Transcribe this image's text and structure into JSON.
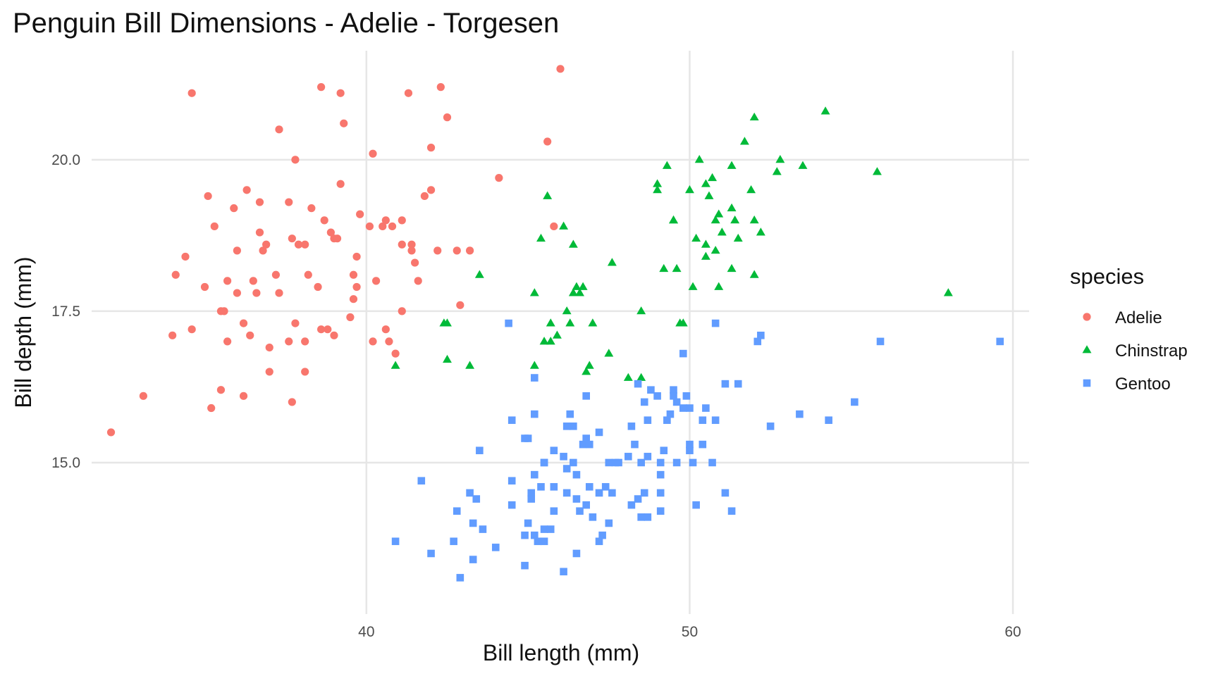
{
  "chart_data": {
    "type": "scatter",
    "title": "Penguin Bill Dimensions - Adelie - Torgesen",
    "xlabel": "Bill length (mm)",
    "ylabel": "Bill depth (mm)",
    "xlim": [
      31.5,
      60.5
    ],
    "ylim": [
      12.5,
      21.8
    ],
    "x_ticks": [
      40,
      50,
      60
    ],
    "x_tick_labels": [
      "40",
      "50",
      "60"
    ],
    "y_ticks": [
      15,
      17.5,
      20
    ],
    "y_tick_labels": [
      "15.0",
      "17.5",
      "20.0"
    ],
    "grid": true,
    "legend": {
      "title": "species",
      "position": "right"
    },
    "series": [
      {
        "name": "Adelie",
        "color": "#F8766D",
        "shape": "circle",
        "points": [
          [
            32.1,
            15.5
          ],
          [
            33.1,
            16.1
          ],
          [
            34.1,
            18.1
          ],
          [
            34.4,
            18.4
          ],
          [
            34.6,
            21.1
          ],
          [
            34.6,
            17.2
          ],
          [
            35.0,
            17.9
          ],
          [
            35.1,
            19.4
          ],
          [
            35.2,
            15.9
          ],
          [
            35.3,
            18.9
          ],
          [
            35.5,
            16.2
          ],
          [
            35.5,
            17.5
          ],
          [
            35.6,
            17.5
          ],
          [
            35.7,
            18.0
          ],
          [
            35.7,
            17.0
          ],
          [
            35.9,
            19.2
          ],
          [
            36.0,
            17.8
          ],
          [
            36.0,
            18.5
          ],
          [
            36.2,
            16.1
          ],
          [
            36.2,
            17.3
          ],
          [
            36.4,
            17.1
          ],
          [
            36.5,
            18.0
          ],
          [
            36.6,
            17.8
          ],
          [
            36.7,
            19.3
          ],
          [
            36.8,
            18.5
          ],
          [
            37.0,
            16.9
          ],
          [
            37.2,
            18.1
          ],
          [
            37.3,
            17.8
          ],
          [
            37.3,
            20.5
          ],
          [
            37.6,
            19.3
          ],
          [
            37.7,
            18.7
          ],
          [
            37.8,
            20.0
          ],
          [
            37.8,
            17.3
          ],
          [
            37.9,
            18.6
          ],
          [
            38.1,
            18.6
          ],
          [
            38.1,
            17.0
          ],
          [
            38.2,
            18.1
          ],
          [
            38.3,
            19.2
          ],
          [
            38.6,
            17.2
          ],
          [
            38.6,
            21.2
          ],
          [
            38.7,
            19.0
          ],
          [
            38.8,
            17.2
          ],
          [
            39.0,
            18.7
          ],
          [
            39.1,
            18.7
          ],
          [
            39.2,
            21.1
          ],
          [
            39.3,
            20.6
          ],
          [
            39.5,
            17.4
          ],
          [
            39.6,
            17.7
          ],
          [
            39.7,
            18.4
          ],
          [
            39.8,
            19.1
          ],
          [
            40.2,
            17.0
          ],
          [
            40.3,
            18.0
          ],
          [
            40.5,
            18.9
          ],
          [
            40.6,
            19.0
          ],
          [
            40.7,
            17.0
          ],
          [
            40.8,
            18.9
          ],
          [
            40.9,
            16.8
          ],
          [
            41.1,
            18.6
          ],
          [
            41.1,
            17.5
          ],
          [
            41.3,
            21.1
          ],
          [
            41.4,
            18.6
          ],
          [
            41.5,
            18.3
          ],
          [
            41.6,
            18.0
          ],
          [
            41.8,
            19.4
          ],
          [
            42.0,
            20.2
          ],
          [
            42.2,
            18.5
          ],
          [
            42.3,
            21.2
          ],
          [
            42.5,
            20.7
          ],
          [
            42.8,
            18.5
          ],
          [
            42.9,
            17.6
          ],
          [
            43.2,
            18.5
          ],
          [
            44.1,
            19.7
          ],
          [
            45.6,
            20.3
          ],
          [
            45.8,
            18.9
          ],
          [
            46.0,
            21.5
          ],
          [
            34.0,
            17.1
          ],
          [
            36.3,
            19.5
          ],
          [
            37.7,
            16.0
          ],
          [
            38.5,
            17.9
          ],
          [
            39.2,
            19.6
          ],
          [
            40.1,
            18.9
          ],
          [
            41.1,
            19.0
          ],
          [
            42.0,
            19.5
          ],
          [
            39.7,
            17.9
          ],
          [
            40.6,
            17.2
          ],
          [
            37.6,
            17.0
          ],
          [
            36.9,
            18.6
          ],
          [
            38.9,
            18.8
          ],
          [
            39.6,
            18.1
          ],
          [
            40.2,
            20.1
          ],
          [
            41.4,
            18.5
          ],
          [
            36.7,
            18.8
          ],
          [
            37.0,
            16.5
          ],
          [
            38.1,
            16.5
          ],
          [
            39.0,
            17.1
          ]
        ]
      },
      {
        "name": "Chinstrap",
        "color": "#00BA38",
        "shape": "triangle",
        "points": [
          [
            40.9,
            16.6
          ],
          [
            42.4,
            17.3
          ],
          [
            42.5,
            16.7
          ],
          [
            42.5,
            17.3
          ],
          [
            43.2,
            16.6
          ],
          [
            43.5,
            18.1
          ],
          [
            45.2,
            17.8
          ],
          [
            45.2,
            16.6
          ],
          [
            45.4,
            18.7
          ],
          [
            45.5,
            17.0
          ],
          [
            45.6,
            19.4
          ],
          [
            45.7,
            17.0
          ],
          [
            45.7,
            17.3
          ],
          [
            45.9,
            17.1
          ],
          [
            46.1,
            18.9
          ],
          [
            46.2,
            17.5
          ],
          [
            46.4,
            18.6
          ],
          [
            46.4,
            17.8
          ],
          [
            46.5,
            17.9
          ],
          [
            46.6,
            17.8
          ],
          [
            46.8,
            16.5
          ],
          [
            46.9,
            16.6
          ],
          [
            47.0,
            17.3
          ],
          [
            47.5,
            16.8
          ],
          [
            47.6,
            18.3
          ],
          [
            48.1,
            16.4
          ],
          [
            48.5,
            17.5
          ],
          [
            49.0,
            19.5
          ],
          [
            49.0,
            19.6
          ],
          [
            49.2,
            18.2
          ],
          [
            49.3,
            19.9
          ],
          [
            49.5,
            19.0
          ],
          [
            49.6,
            18.2
          ],
          [
            49.7,
            17.3
          ],
          [
            50.0,
            19.5
          ],
          [
            50.1,
            17.9
          ],
          [
            50.2,
            18.7
          ],
          [
            50.3,
            20.0
          ],
          [
            50.5,
            19.6
          ],
          [
            50.5,
            18.4
          ],
          [
            50.6,
            19.4
          ],
          [
            50.7,
            19.7
          ],
          [
            50.8,
            18.5
          ],
          [
            50.8,
            19.0
          ],
          [
            50.9,
            19.1
          ],
          [
            51.0,
            18.8
          ],
          [
            51.3,
            18.2
          ],
          [
            51.3,
            19.9
          ],
          [
            51.4,
            19.0
          ],
          [
            51.5,
            18.7
          ],
          [
            51.7,
            20.3
          ],
          [
            51.9,
            19.5
          ],
          [
            52.0,
            19.0
          ],
          [
            52.0,
            20.7
          ],
          [
            52.2,
            18.8
          ],
          [
            52.7,
            19.8
          ],
          [
            52.8,
            20.0
          ],
          [
            53.5,
            19.9
          ],
          [
            54.2,
            20.8
          ],
          [
            55.8,
            19.8
          ],
          [
            58.0,
            17.8
          ],
          [
            50.5,
            18.6
          ],
          [
            49.8,
            17.3
          ],
          [
            51.3,
            19.2
          ],
          [
            50.9,
            17.9
          ],
          [
            46.7,
            17.9
          ],
          [
            52.0,
            18.1
          ],
          [
            46.3,
            17.3
          ],
          [
            48.5,
            16.4
          ],
          [
            49.5,
            19.0
          ]
        ]
      },
      {
        "name": "Gentoo",
        "color": "#619CFF",
        "shape": "square",
        "points": [
          [
            40.9,
            13.7
          ],
          [
            41.7,
            14.7
          ],
          [
            42.0,
            13.5
          ],
          [
            42.7,
            13.7
          ],
          [
            42.8,
            14.2
          ],
          [
            42.9,
            13.1
          ],
          [
            43.2,
            14.5
          ],
          [
            43.3,
            13.4
          ],
          [
            43.3,
            14.0
          ],
          [
            43.4,
            14.4
          ],
          [
            43.5,
            15.2
          ],
          [
            43.6,
            13.9
          ],
          [
            44.0,
            13.6
          ],
          [
            44.4,
            17.3
          ],
          [
            44.5,
            15.7
          ],
          [
            44.5,
            14.3
          ],
          [
            44.5,
            14.7
          ],
          [
            44.9,
            13.8
          ],
          [
            44.9,
            13.3
          ],
          [
            45.0,
            15.4
          ],
          [
            45.1,
            14.5
          ],
          [
            45.1,
            14.4
          ],
          [
            45.2,
            13.8
          ],
          [
            45.2,
            14.8
          ],
          [
            45.2,
            15.8
          ],
          [
            45.2,
            16.4
          ],
          [
            45.3,
            13.7
          ],
          [
            45.4,
            14.6
          ],
          [
            45.5,
            13.7
          ],
          [
            45.5,
            13.9
          ],
          [
            45.5,
            15.0
          ],
          [
            45.7,
            13.9
          ],
          [
            45.8,
            14.6
          ],
          [
            45.8,
            14.2
          ],
          [
            46.1,
            13.2
          ],
          [
            46.1,
            15.1
          ],
          [
            46.2,
            14.5
          ],
          [
            46.2,
            14.9
          ],
          [
            46.3,
            15.8
          ],
          [
            46.4,
            15.0
          ],
          [
            46.4,
            15.6
          ],
          [
            46.5,
            13.5
          ],
          [
            46.5,
            14.4
          ],
          [
            46.5,
            14.8
          ],
          [
            46.6,
            14.2
          ],
          [
            46.7,
            15.3
          ],
          [
            46.8,
            14.3
          ],
          [
            46.8,
            15.4
          ],
          [
            46.8,
            16.1
          ],
          [
            46.9,
            14.6
          ],
          [
            47.2,
            13.7
          ],
          [
            47.2,
            15.5
          ],
          [
            47.2,
            14.5
          ],
          [
            47.3,
            13.8
          ],
          [
            47.4,
            14.6
          ],
          [
            47.5,
            14.0
          ],
          [
            47.5,
            15.0
          ],
          [
            47.6,
            14.5
          ],
          [
            47.7,
            15.0
          ],
          [
            47.8,
            15.0
          ],
          [
            48.1,
            15.1
          ],
          [
            48.2,
            14.3
          ],
          [
            48.2,
            15.6
          ],
          [
            48.4,
            14.4
          ],
          [
            48.4,
            16.3
          ],
          [
            48.5,
            14.1
          ],
          [
            48.5,
            15.0
          ],
          [
            48.6,
            16.0
          ],
          [
            48.7,
            14.1
          ],
          [
            48.7,
            15.1
          ],
          [
            48.7,
            15.7
          ],
          [
            48.8,
            16.2
          ],
          [
            49.0,
            16.1
          ],
          [
            49.1,
            14.5
          ],
          [
            49.1,
            14.8
          ],
          [
            49.1,
            15.0
          ],
          [
            49.2,
            15.2
          ],
          [
            49.3,
            15.7
          ],
          [
            49.4,
            15.8
          ],
          [
            49.5,
            16.2
          ],
          [
            49.5,
            16.1
          ],
          [
            49.6,
            16.0
          ],
          [
            49.6,
            15.0
          ],
          [
            49.8,
            15.9
          ],
          [
            49.8,
            16.8
          ],
          [
            49.9,
            16.1
          ],
          [
            50.0,
            15.2
          ],
          [
            50.0,
            15.3
          ],
          [
            50.0,
            15.9
          ],
          [
            50.1,
            15.0
          ],
          [
            50.2,
            14.3
          ],
          [
            50.4,
            15.3
          ],
          [
            50.4,
            15.7
          ],
          [
            50.5,
            15.9
          ],
          [
            50.7,
            15.0
          ],
          [
            50.8,
            15.7
          ],
          [
            50.8,
            17.3
          ],
          [
            51.1,
            14.5
          ],
          [
            51.1,
            16.3
          ],
          [
            51.3,
            14.2
          ],
          [
            51.5,
            16.3
          ],
          [
            52.1,
            17.0
          ],
          [
            52.2,
            17.1
          ],
          [
            52.5,
            15.6
          ],
          [
            53.4,
            15.8
          ],
          [
            54.3,
            15.7
          ],
          [
            55.1,
            16.0
          ],
          [
            55.9,
            17.0
          ],
          [
            59.6,
            17.0
          ],
          [
            45.5,
            15.0
          ],
          [
            46.2,
            15.6
          ],
          [
            48.6,
            14.5
          ],
          [
            49.1,
            14.2
          ],
          [
            48.3,
            15.3
          ],
          [
            45.0,
            14.0
          ],
          [
            46.9,
            15.3
          ],
          [
            47.0,
            14.1
          ],
          [
            44.9,
            15.4
          ],
          [
            45.8,
            15.2
          ]
        ]
      }
    ]
  }
}
